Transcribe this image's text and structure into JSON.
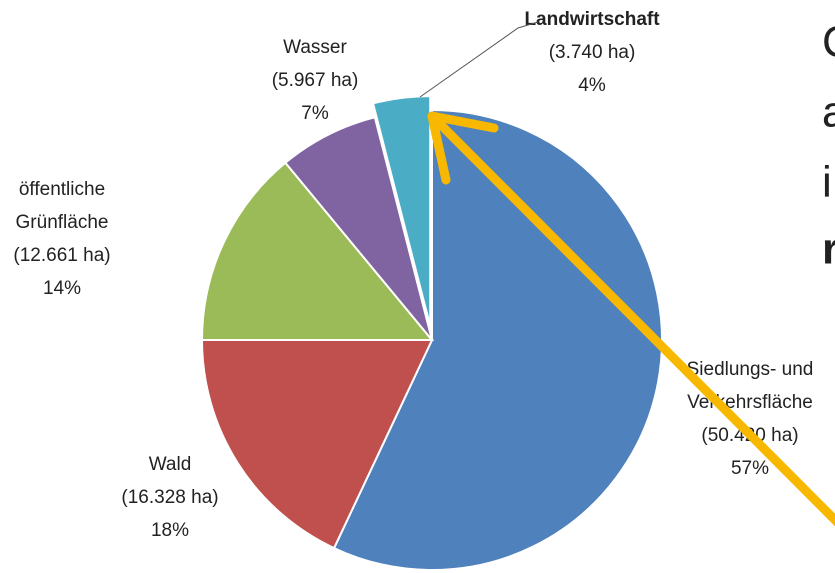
{
  "chart_data": {
    "type": "pie",
    "categories": [
      "Siedlungs- und Verkehrsfläche",
      "Wald",
      "öffentliche Grünfläche",
      "Wasser",
      "Landwirtschaft"
    ],
    "values": [
      57,
      18,
      14,
      7,
      4
    ],
    "value_labels": [
      "57%",
      "18%",
      "14%",
      "7%",
      "4%"
    ],
    "area_labels": [
      "(50.420 ha)",
      "(16.328 ha)",
      "(12.661 ha)",
      "(5.967 ha)",
      "(3.740 ha)"
    ],
    "colors": [
      "#4f81bd",
      "#c0504d",
      "#9bbb59",
      "#8064a2",
      "#4bacc6"
    ],
    "exploded": [
      false,
      false,
      false,
      false,
      true
    ],
    "side_text": [
      {
        "text": "C",
        "color": "#c0392b"
      },
      {
        "text": "a",
        "color": "#31a2b0"
      },
      {
        "text": "i",
        "color": "#c0392b"
      },
      {
        "text": "r",
        "color": "#c0392b"
      }
    ]
  }
}
